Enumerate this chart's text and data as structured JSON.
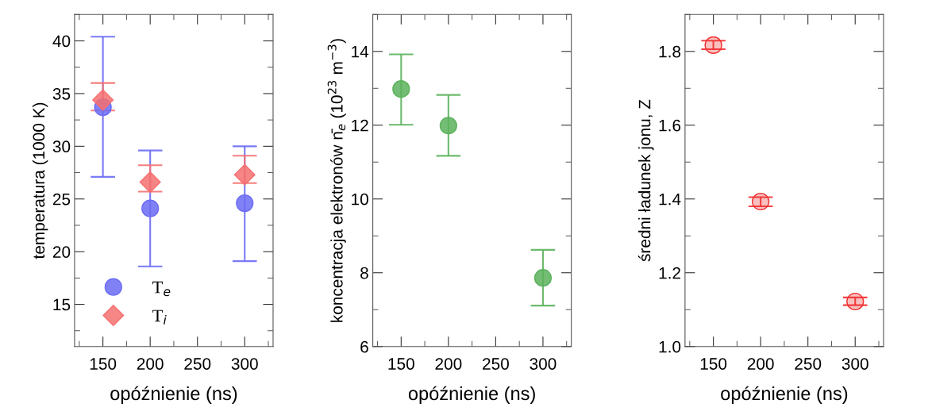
{
  "chart_data": [
    {
      "type": "scatter",
      "xlabel": "opóźnienie (ns)",
      "ylabel": "temperatura (1000 K)",
      "x": [
        150,
        200,
        300
      ],
      "xlim": [
        120,
        330
      ],
      "xticks": [
        150,
        200,
        250,
        300
      ],
      "ylim": [
        11,
        42.5
      ],
      "yticks": [
        15,
        20,
        25,
        30,
        35,
        40
      ],
      "legend": "bottom left",
      "grid": false,
      "series": [
        {
          "name": "T$_{e}$",
          "color": "#6b6bf5",
          "marker": "circle",
          "values": [
            33.7,
            24.1,
            24.6
          ],
          "errors": [
            [
              27.1,
              40.4
            ],
            [
              18.6,
              29.6
            ],
            [
              19.1,
              30.0
            ]
          ]
        },
        {
          "name": "T$_{i}$",
          "color": "#f57070",
          "marker": "diamond",
          "values": [
            34.4,
            26.6,
            27.3
          ],
          "errors": [
            [
              33.4,
              36.0
            ],
            [
              25.7,
              28.2
            ],
            [
              26.5,
              29.1
            ]
          ]
        }
      ]
    },
    {
      "type": "scatter",
      "xlabel": "opóźnienie (ns)",
      "ylabel": "koncentracja elektronów n̄$_{e}$ (10$^{23}$ m$^{−3}$)",
      "x": [
        150,
        200,
        300
      ],
      "xlim": [
        120,
        330
      ],
      "xticks": [
        150,
        200,
        250,
        300
      ],
      "ylim": [
        6,
        15
      ],
      "yticks": [
        6,
        8,
        10,
        12,
        14
      ],
      "grid": false,
      "series": [
        {
          "color": "#5cb25c",
          "marker": "circle",
          "values": [
            12.98,
            11.99,
            7.86
          ],
          "errors": [
            [
              12.01,
              13.92
            ],
            [
              11.17,
              12.82
            ],
            [
              7.11,
              8.62
            ]
          ]
        }
      ]
    },
    {
      "type": "scatter",
      "xlabel": "opóźnienie (ns)",
      "ylabel": "średni ładunek jonu, Z",
      "x": [
        150,
        200,
        300
      ],
      "xlim": [
        120,
        330
      ],
      "xticks": [
        150,
        200,
        250,
        300
      ],
      "ylim": [
        1.0,
        1.9
      ],
      "yticks": [
        {
          "value": 1.0,
          "label": "1.0"
        },
        1.2,
        1.4,
        1.6,
        1.8
      ],
      "grid": false,
      "series": [
        {
          "color": "#f03030",
          "marker": "circle",
          "values": [
            1.817,
            1.393,
            1.122
          ],
          "errors": [
            [
              1.806,
              1.829
            ],
            [
              1.38,
              1.405
            ],
            [
              1.112,
              1.133
            ]
          ]
        }
      ]
    }
  ]
}
